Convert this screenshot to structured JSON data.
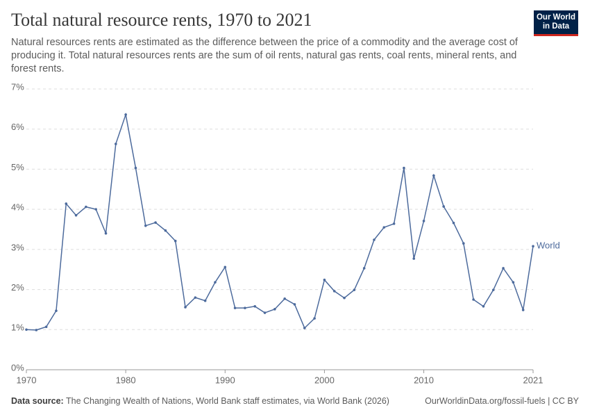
{
  "chart_data": {
    "type": "line",
    "title": "Total natural resource rents, 1970 to 2021",
    "subtitle": "Natural resources rents are estimated as the difference between the price of a commodity and the average cost of producing it. Total natural resources rents are the sum of oil rents, natural gas rents, coal rents, mineral rents, and forest rents.",
    "logo": [
      "Our World",
      "in Data"
    ],
    "source_label": "Data source:",
    "source": "The Changing Wealth of Nations, World Bank staff estimates, via World Bank (2026)",
    "url": "OurWorldinData.org/fossil-fuels | CC BY",
    "x": [
      1970,
      1971,
      1972,
      1973,
      1974,
      1975,
      1976,
      1977,
      1978,
      1979,
      1980,
      1981,
      1982,
      1983,
      1984,
      1985,
      1986,
      1987,
      1988,
      1989,
      1990,
      1991,
      1992,
      1993,
      1994,
      1995,
      1996,
      1997,
      1998,
      1999,
      2000,
      2001,
      2002,
      2003,
      2004,
      2005,
      2006,
      2007,
      2008,
      2009,
      2010,
      2011,
      2012,
      2013,
      2014,
      2015,
      2016,
      2017,
      2018,
      2019,
      2020,
      2021
    ],
    "series": [
      {
        "name": "World",
        "color": "#4c6a9c",
        "values": [
          1.0,
          0.99,
          1.07,
          1.47,
          4.14,
          3.85,
          4.06,
          4.0,
          3.4,
          5.63,
          6.36,
          5.03,
          3.59,
          3.67,
          3.47,
          3.21,
          1.56,
          1.8,
          1.72,
          2.18,
          2.56,
          1.54,
          1.54,
          1.58,
          1.42,
          1.51,
          1.77,
          1.63,
          1.04,
          1.28,
          2.24,
          1.96,
          1.79,
          1.99,
          2.53,
          3.24,
          3.55,
          3.64,
          5.03,
          2.77,
          3.71,
          4.84,
          4.07,
          3.66,
          3.15,
          1.75,
          1.58,
          1.99,
          2.53,
          2.18,
          1.49,
          3.08
        ]
      }
    ],
    "xlim": [
      1970,
      2021
    ],
    "xticks": [
      1970,
      1980,
      1990,
      2000,
      2010,
      2021
    ],
    "ylim": [
      0,
      7
    ],
    "yticks": [
      {
        "value": 0,
        "label": "0%"
      },
      {
        "value": 1,
        "label": "1%"
      },
      {
        "value": 2,
        "label": "2%"
      },
      {
        "value": 3,
        "label": "3%"
      },
      {
        "value": 4,
        "label": "4%"
      },
      {
        "value": 5,
        "label": "5%"
      },
      {
        "value": 6,
        "label": "6%"
      },
      {
        "value": 7,
        "label": "7%"
      }
    ],
    "grid": true
  }
}
